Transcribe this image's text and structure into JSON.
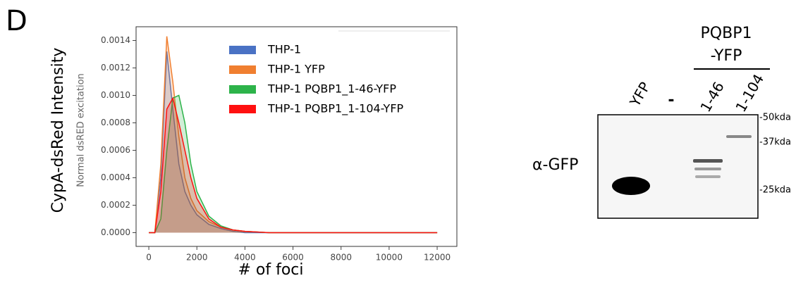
{
  "panel_label": "D",
  "chart_data": {
    "type": "area",
    "ylabel": "CypA-dsRed Intensity",
    "ylabel_inner": "Normal dsRED excitation",
    "xlabel": "# of foci",
    "x": [
      0,
      250,
      500,
      750,
      1000,
      1250,
      1500,
      1750,
      2000,
      2500,
      3000,
      3500,
      4000,
      5000,
      6000,
      8000,
      10000,
      12000
    ],
    "series": [
      {
        "name": "THP-1",
        "color": "#4a72c4",
        "values": [
          0,
          0,
          0.0004,
          0.00132,
          0.0009,
          0.0005,
          0.0003,
          0.0002,
          0.00013,
          6e-05,
          3e-05,
          1e-05,
          0,
          0,
          0,
          0,
          0,
          0
        ]
      },
      {
        "name": "THP-1 YFP",
        "color": "#f07f30",
        "values": [
          0,
          0,
          0.0005,
          0.00143,
          0.0011,
          0.0007,
          0.0004,
          0.00025,
          0.00016,
          8e-05,
          4e-05,
          2e-05,
          1e-05,
          0,
          0,
          0,
          0,
          0
        ]
      },
      {
        "name": "THP-1 PQBP1_1-46-YFP",
        "color": "#2db34a",
        "values": [
          0,
          0,
          0.0001,
          0.0006,
          0.00098,
          0.001,
          0.0008,
          0.0005,
          0.0003,
          0.00012,
          5e-05,
          2e-05,
          1e-05,
          0,
          0,
          0,
          0,
          0
        ]
      },
      {
        "name": "THP-1 PQBP1_1-104-YFP",
        "color": "#ff1010",
        "values": [
          0,
          0,
          0.0003,
          0.0009,
          0.00098,
          0.0008,
          0.0006,
          0.0004,
          0.00025,
          0.0001,
          4e-05,
          2e-05,
          1e-05,
          0,
          0,
          0,
          0,
          0
        ]
      }
    ],
    "xlim": [
      -530,
      12820
    ],
    "ylim": [
      -0.0001,
      0.0015
    ],
    "xticks": [
      0,
      2000,
      4000,
      6000,
      8000,
      10000,
      12000
    ],
    "yticks": [
      {
        "value": 0,
        "label": "0.0000"
      },
      {
        "value": 0.0002,
        "label": "0.0002"
      },
      {
        "value": 0.0004,
        "label": "0.0004"
      },
      {
        "value": 0.0006,
        "label": "0.0006"
      },
      {
        "value": 0.0008,
        "label": "0.0008"
      },
      {
        "value": 0.001,
        "label": "0.0010"
      },
      {
        "value": 0.0012,
        "label": "0.0012"
      },
      {
        "value": 0.0014,
        "label": "0.0014"
      }
    ],
    "legend": "upper right"
  },
  "blot": {
    "construct_line1": "PQBP1",
    "construct_line2": "-YFP",
    "lanes": [
      "YFP",
      "-",
      "1-46",
      "1-104"
    ],
    "markers": [
      "-50kda",
      "-37kda",
      "-25kda"
    ],
    "antibody": "α-GFP"
  }
}
